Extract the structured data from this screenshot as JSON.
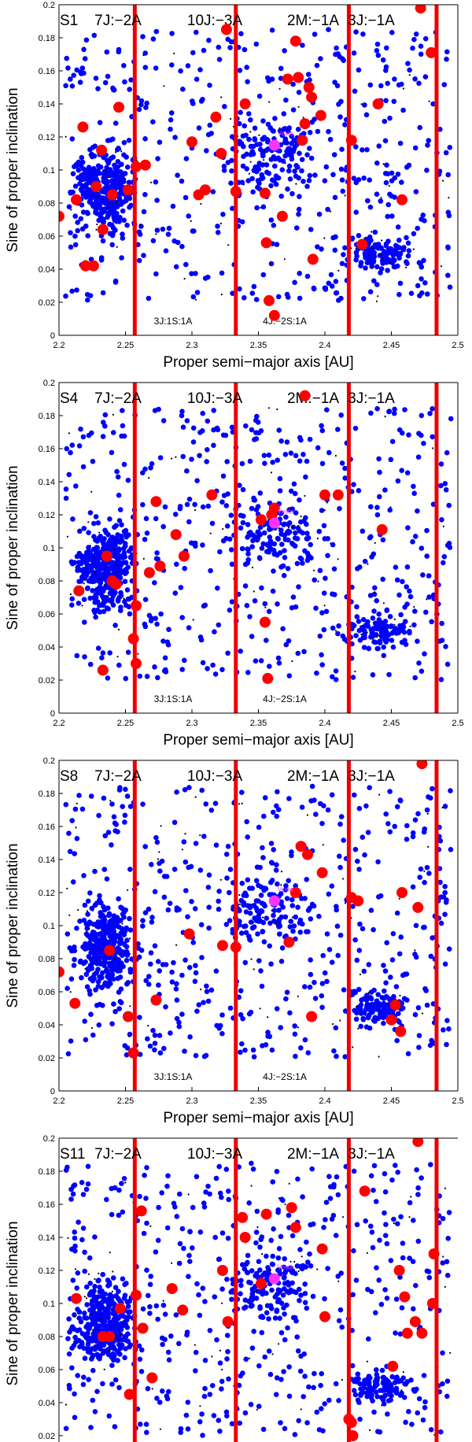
{
  "colors": {
    "background_dot": "#0000ff",
    "family_member": "#ff0000",
    "vesta": "#ff33ff",
    "resonance_line": "#ee0000",
    "axis": "#000000"
  },
  "chart_data": {
    "type": "scatter",
    "shared": {
      "xlabel": "Proper semi−major axis [AU]",
      "ylabel": "Sine of proper inclination",
      "xlim": [
        2.2,
        2.5
      ],
      "ylim": [
        0,
        0.2
      ],
      "xticks": [
        2.2,
        2.25,
        2.3,
        2.35,
        2.4,
        2.45,
        2.5
      ],
      "xtick_labels": [
        "2.2",
        "2.25",
        "2.3",
        "2.35",
        "2.4",
        "2.45",
        "2.5"
      ],
      "yticks": [
        0,
        0.02,
        0.04,
        0.06,
        0.08,
        0.1,
        0.12,
        0.14,
        0.16,
        0.18,
        0.2
      ],
      "ytick_labels": [
        "0",
        "0.02",
        "0.04",
        "0.06",
        "0.08",
        "0.1",
        "0.12",
        "0.14",
        "0.16",
        "0.18",
        "0.2"
      ],
      "resonances": [
        {
          "label": "7J:−2A",
          "a": 2.257
        },
        {
          "label": "10J:−3A",
          "a": 2.333
        },
        {
          "label": "2M:−1A",
          "a": 2.418
        },
        {
          "label": "3J:−1A",
          "a": 2.484
        }
      ],
      "weak_resonances": [
        {
          "label": "3J:1S:1A",
          "a": 2.297
        },
        {
          "label": "4J:−2S:1A",
          "a": 2.378
        }
      ],
      "vesta": {
        "label": "Vesta",
        "a": 2.362,
        "sini": 0.115
      }
    },
    "panels": [
      {
        "name": "S1",
        "show_xaxis": true,
        "weak_labels": [
          "3J:1S:1A",
          "4J:−2S:1A"
        ],
        "family": [
          [
            2.2,
            0.072
          ],
          [
            2.213,
            0.082
          ],
          [
            2.218,
            0.126
          ],
          [
            2.22,
            0.042
          ],
          [
            2.226,
            0.042
          ],
          [
            2.228,
            0.09
          ],
          [
            2.232,
            0.112
          ],
          [
            2.233,
            0.064
          ],
          [
            2.24,
            0.085
          ],
          [
            2.245,
            0.138
          ],
          [
            2.252,
            0.088
          ],
          [
            2.258,
            0.102
          ],
          [
            2.265,
            0.103
          ],
          [
            2.3,
            0.117
          ],
          [
            2.305,
            0.085
          ],
          [
            2.31,
            0.088
          ],
          [
            2.318,
            0.132
          ],
          [
            2.322,
            0.11
          ],
          [
            2.326,
            0.185
          ],
          [
            2.333,
            0.087
          ],
          [
            2.34,
            0.14
          ],
          [
            2.355,
            0.086
          ],
          [
            2.356,
            0.056
          ],
          [
            2.358,
            0.021
          ],
          [
            2.362,
            0.012
          ],
          [
            2.368,
            0.072
          ],
          [
            2.372,
            0.155
          ],
          [
            2.378,
            0.178
          ],
          [
            2.38,
            0.156
          ],
          [
            2.383,
            0.118
          ],
          [
            2.385,
            0.128
          ],
          [
            2.388,
            0.15
          ],
          [
            2.39,
            0.144
          ],
          [
            2.391,
            0.046
          ],
          [
            2.397,
            0.133
          ],
          [
            2.42,
            0.118
          ],
          [
            2.428,
            0.055
          ],
          [
            2.44,
            0.14
          ],
          [
            2.458,
            0.082
          ],
          [
            2.472,
            0.198
          ],
          [
            2.48,
            0.171
          ]
        ]
      },
      {
        "name": "S4",
        "show_xaxis": true,
        "weak_labels": [
          "3J:1S:1A",
          "4J:−2S:1A"
        ],
        "family": [
          [
            2.215,
            0.074
          ],
          [
            2.233,
            0.026
          ],
          [
            2.236,
            0.095
          ],
          [
            2.24,
            0.08
          ],
          [
            2.243,
            0.078
          ],
          [
            2.256,
            0.045
          ],
          [
            2.258,
            0.03
          ],
          [
            2.258,
            0.065
          ],
          [
            2.268,
            0.085
          ],
          [
            2.273,
            0.128
          ],
          [
            2.276,
            0.089
          ],
          [
            2.288,
            0.108
          ],
          [
            2.294,
            0.095
          ],
          [
            2.315,
            0.132
          ],
          [
            2.352,
            0.117
          ],
          [
            2.355,
            0.055
          ],
          [
            2.357,
            0.021
          ],
          [
            2.36,
            0.12
          ],
          [
            2.362,
            0.124
          ],
          [
            2.385,
            0.192
          ],
          [
            2.4,
            0.132
          ],
          [
            2.41,
            0.132
          ],
          [
            2.443,
            0.111
          ]
        ]
      },
      {
        "name": "S8",
        "show_xaxis": true,
        "weak_labels": [
          "3J:1S:1A",
          "4J:−2S:1A"
        ],
        "family": [
          [
            2.2,
            0.072
          ],
          [
            2.212,
            0.053
          ],
          [
            2.238,
            0.085
          ],
          [
            2.252,
            0.045
          ],
          [
            2.256,
            0.023
          ],
          [
            2.273,
            0.055
          ],
          [
            2.298,
            0.095
          ],
          [
            2.323,
            0.088
          ],
          [
            2.333,
            0.087
          ],
          [
            2.373,
            0.09
          ],
          [
            2.378,
            0.12
          ],
          [
            2.382,
            0.148
          ],
          [
            2.387,
            0.143
          ],
          [
            2.39,
            0.045
          ],
          [
            2.398,
            0.132
          ],
          [
            2.42,
            0.117
          ],
          [
            2.425,
            0.115
          ],
          [
            2.45,
            0.043
          ],
          [
            2.453,
            0.052
          ],
          [
            2.457,
            0.036
          ],
          [
            2.458,
            0.12
          ],
          [
            2.47,
            0.111
          ],
          [
            2.473,
            0.198
          ]
        ]
      },
      {
        "name": "S11",
        "show_xaxis": false,
        "weak_labels": [],
        "family": [
          [
            2.213,
            0.103
          ],
          [
            2.233,
            0.08
          ],
          [
            2.238,
            0.08
          ],
          [
            2.246,
            0.097
          ],
          [
            2.253,
            0.045
          ],
          [
            2.258,
            0.105
          ],
          [
            2.262,
            0.156
          ],
          [
            2.263,
            0.085
          ],
          [
            2.27,
            0.055
          ],
          [
            2.285,
            0.109
          ],
          [
            2.293,
            0.096
          ],
          [
            2.323,
            0.12
          ],
          [
            2.327,
            0.089
          ],
          [
            2.338,
            0.152
          ],
          [
            2.34,
            0.14
          ],
          [
            2.352,
            0.112
          ],
          [
            2.356,
            0.154
          ],
          [
            2.375,
            0.158
          ],
          [
            2.378,
            0.146
          ],
          [
            2.398,
            0.133
          ],
          [
            2.4,
            0.092
          ],
          [
            2.418,
            0.03
          ],
          [
            2.42,
            0.028
          ],
          [
            2.421,
            0.02
          ],
          [
            2.43,
            0.168
          ],
          [
            2.451,
            0.062
          ],
          [
            2.456,
            0.12
          ],
          [
            2.46,
            0.104
          ],
          [
            2.462,
            0.082
          ],
          [
            2.468,
            0.089
          ],
          [
            2.47,
            0.198
          ],
          [
            2.473,
            0.082
          ],
          [
            2.481,
            0.1
          ],
          [
            2.482,
            0.13
          ]
        ]
      }
    ]
  }
}
